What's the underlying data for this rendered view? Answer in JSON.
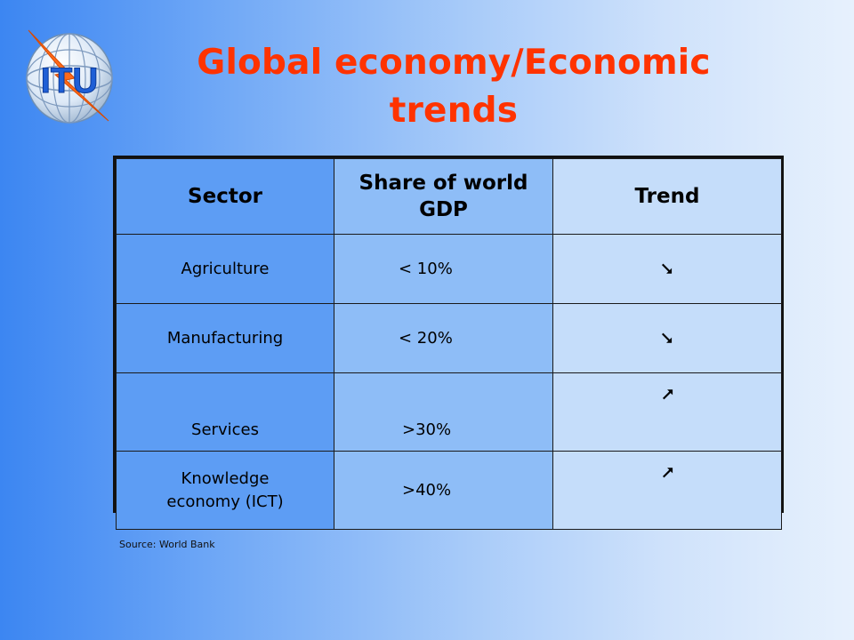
{
  "slide": {
    "title_line1": "Global economy/Economic",
    "title_line2": "trends",
    "logo_text": "ITU",
    "source": "Source: World Bank"
  },
  "table": {
    "headers": [
      "Sector",
      "Share of world GDP",
      "Trend"
    ],
    "rows": [
      {
        "sector": "Agriculture",
        "share": "< 10%",
        "trend": "down"
      },
      {
        "sector": "Manufacturing",
        "share": "< 20%",
        "trend": "down"
      },
      {
        "sector": "Services",
        "share": ">30%",
        "trend": "up"
      },
      {
        "sector_line1": "Knowledge",
        "sector_line2": "economy (ICT)",
        "share": ">40%",
        "trend": "up"
      }
    ]
  },
  "colors": {
    "title": "#ff3300",
    "column1": "#5d9df4",
    "column2": "#8ebdf7",
    "column3": "#c5ddfa"
  }
}
